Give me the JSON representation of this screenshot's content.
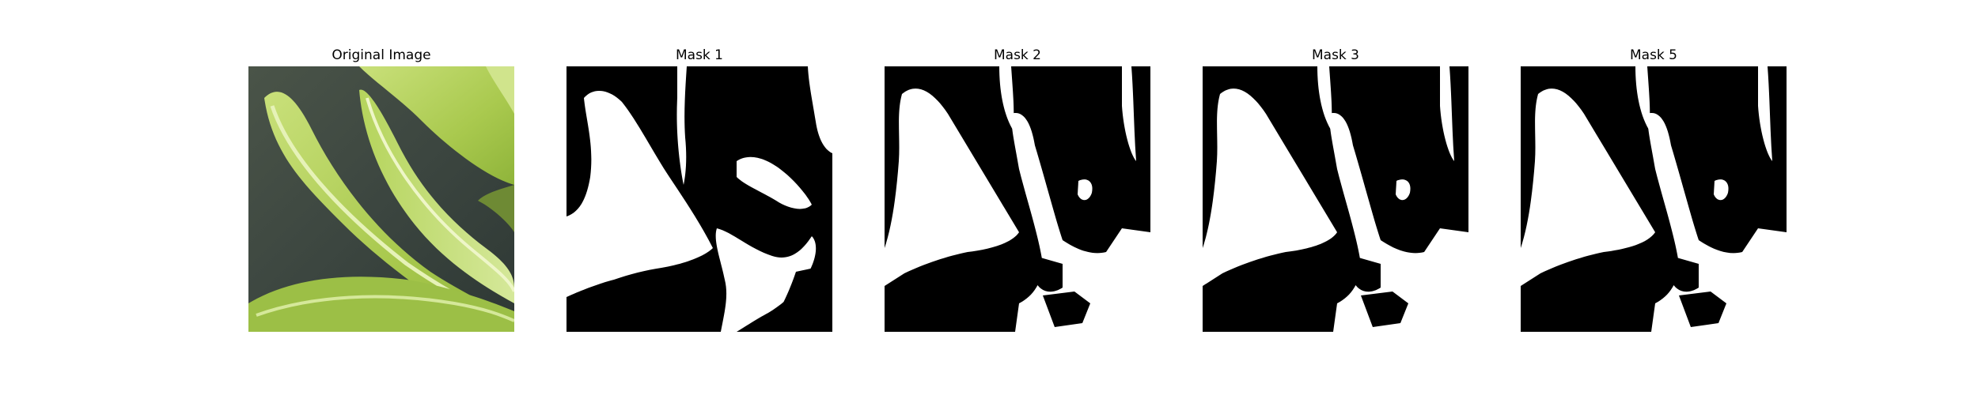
{
  "figure": {
    "panels": [
      {
        "title": "Original Image",
        "kind": "photo",
        "subject": "green leafy vegetable (bok choy) leaves"
      },
      {
        "title": "Mask 1",
        "kind": "mask",
        "colors": {
          "foreground": "#ffffff",
          "background": "#000000"
        }
      },
      {
        "title": "Mask 2",
        "kind": "mask",
        "colors": {
          "foreground": "#ffffff",
          "background": "#000000"
        }
      },
      {
        "title": "Mask 3",
        "kind": "mask",
        "colors": {
          "foreground": "#ffffff",
          "background": "#000000"
        }
      },
      {
        "title": "Mask 5",
        "kind": "mask",
        "colors": {
          "foreground": "#ffffff",
          "background": "#000000"
        }
      }
    ]
  }
}
